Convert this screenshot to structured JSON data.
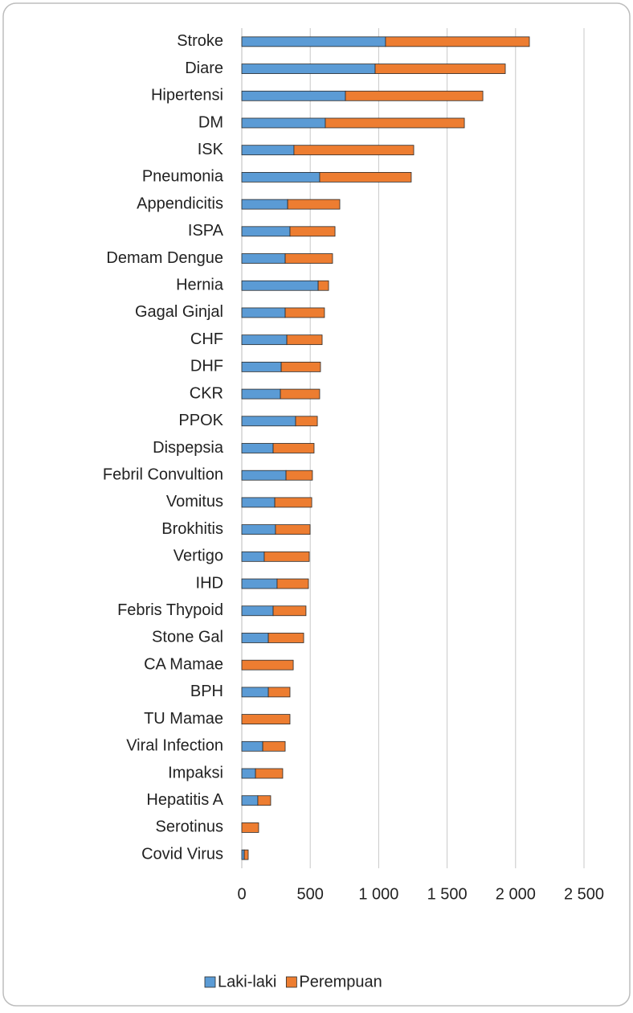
{
  "chart_data": {
    "type": "stacked_barh",
    "categories": [
      "Stroke",
      "Diare",
      "Hipertensi",
      "DM",
      "ISK",
      "Pneumonia",
      "Appendicitis",
      "ISPA",
      "Demam Dengue",
      "Hernia",
      "Gagal Ginjal",
      "CHF",
      "DHF",
      "CKR",
      "PPOK",
      "Dispepsia",
      "Febril Convultion",
      "Vomitus",
      "Brokhitis",
      "Vertigo",
      "IHD",
      "Febris Thypoid",
      "Stone Gal",
      "CA Mamae",
      "BPH",
      "TU Mamae",
      "Viral Infection",
      "Impaksi",
      "Hepatitis A",
      "Serotinus",
      "Covid Virus"
    ],
    "series": [
      {
        "name": "Laki-laki",
        "color": "#5b9bd5",
        "values": [
          1050,
          974,
          757,
          610,
          381,
          569,
          335,
          352,
          317,
          558,
          317,
          329,
          288,
          282,
          393,
          229,
          323,
          241,
          246,
          164,
          258,
          229,
          194,
          0,
          194,
          0,
          153,
          100,
          117,
          0,
          18
        ]
      },
      {
        "name": "Perempuan",
        "color": "#ed7d31",
        "values": [
          1051,
          951,
          1004,
          1016,
          875,
          669,
          381,
          329,
          346,
          76,
          287,
          258,
          287,
          287,
          159,
          299,
          193,
          270,
          253,
          329,
          229,
          240,
          258,
          376,
          158,
          352,
          164,
          199,
          94,
          123,
          29
        ]
      }
    ],
    "xlim": [
      0,
      2500
    ],
    "xticks": [
      0,
      500,
      {
        "value": 1000,
        "label": "1 000"
      },
      {
        "value": 1500,
        "label": "1 500"
      },
      {
        "value": 2000,
        "label": "2 000"
      },
      {
        "value": 2500,
        "label": "2 500"
      }
    ],
    "grid": true,
    "legend": "bottom"
  }
}
